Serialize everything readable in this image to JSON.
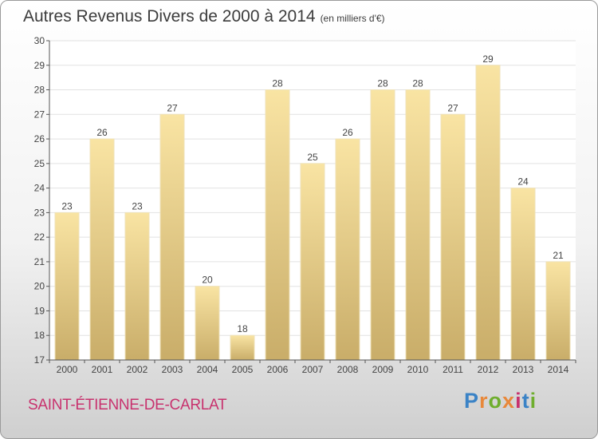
{
  "title": "Autres Revenus Divers de 2000 à 2014",
  "unit": "(en milliers d'€)",
  "commune": "SAINT-ÉTIENNE-DE-CARLAT",
  "brand": {
    "text": "Proxiti",
    "letter_colors": [
      "#3b83c6",
      "#e8883a",
      "#6fae2e",
      "#e8883a",
      "#c8326e",
      "#3b83c6",
      "#6fae2e"
    ]
  },
  "chart_data": {
    "type": "bar",
    "title": "Autres Revenus Divers de 2000 à 2014",
    "xlabel": "",
    "ylabel": "",
    "categories": [
      "2000",
      "2001",
      "2002",
      "2003",
      "2004",
      "2005",
      "2006",
      "2007",
      "2008",
      "2009",
      "2010",
      "2011",
      "2012",
      "2013",
      "2014"
    ],
    "values": [
      23,
      26,
      23,
      27,
      20,
      18,
      28,
      25,
      26,
      28,
      28,
      27,
      29,
      24,
      21
    ],
    "ylim": [
      17,
      30
    ],
    "yticks": [
      17,
      18,
      19,
      20,
      21,
      22,
      23,
      24,
      25,
      26,
      27,
      28,
      29,
      30
    ],
    "grid": true,
    "legend": "none",
    "colors": {
      "bar_top": "#f9e4a3",
      "bar_bottom": "#c9ad69",
      "grid": "#e2e2e2",
      "axis": "#555555"
    }
  }
}
